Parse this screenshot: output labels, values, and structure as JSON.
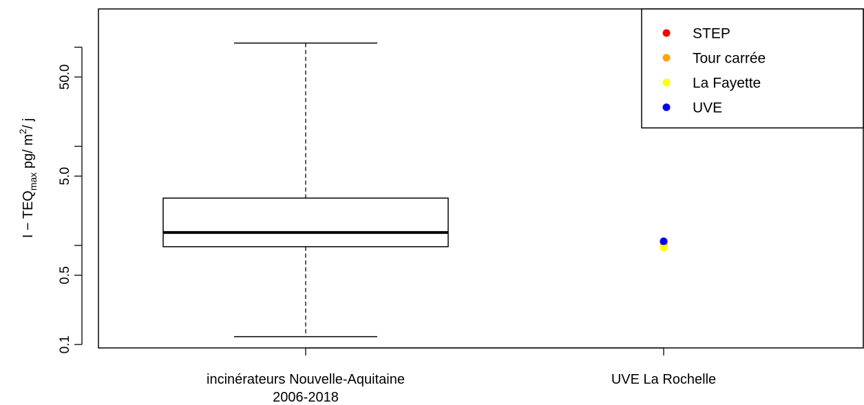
{
  "chart_data": {
    "type": "boxplot",
    "title": "",
    "yscale": "log",
    "ylim": [
      0.08,
      130
    ],
    "yticks": [
      {
        "value": 0.1,
        "label": "0.1"
      },
      {
        "value": 0.5,
        "label": "0.5"
      },
      {
        "value": 5,
        "label": "5.0"
      },
      {
        "value": 50,
        "label": "50.0"
      }
    ],
    "yticks_minor": [
      1,
      10,
      100
    ],
    "ylabel": {
      "base": "I − TEQ",
      "subscript": "max",
      "unit_pre": " pg",
      "unit_mid": "/ m",
      "superscript": "2",
      "unit_post": "/ j"
    },
    "categories": [
      {
        "label_line1": "incinérateurs Nouvelle-Aquitaine",
        "label_line2": "2006-2018"
      },
      {
        "label_line1": "UVE La Rochelle",
        "label_line2": ""
      }
    ],
    "box": {
      "whisker_low": 0.12,
      "q1": 0.97,
      "median": 1.35,
      "q3": 3.0,
      "whisker_high": 110
    },
    "points": [
      {
        "series": "STEP",
        "value": 1.08
      },
      {
        "series": "Tour carrée",
        "value": 1.04
      },
      {
        "series": "La Fayette",
        "value": 0.95
      },
      {
        "series": "UVE",
        "value": 1.1
      }
    ],
    "legend": {
      "position": "top-right",
      "items": [
        {
          "name": "STEP",
          "color": "#ff0000"
        },
        {
          "name": "Tour carrée",
          "color": "#ffa500"
        },
        {
          "name": "La Fayette",
          "color": "#ffff00"
        },
        {
          "name": "UVE",
          "color": "#0000ff"
        }
      ]
    }
  }
}
